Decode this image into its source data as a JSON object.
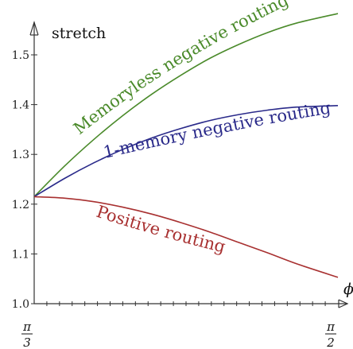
{
  "chart_data": {
    "type": "line",
    "title": "",
    "xlabel": "ϕ",
    "ylabel": "stretch",
    "xlim": [
      1.0472,
      1.5708
    ],
    "ylim": [
      1.0,
      1.55
    ],
    "x_tick_labels": [
      {
        "value": 1.0472,
        "numerator": "π",
        "denominator": "3"
      },
      {
        "value": 1.5708,
        "numerator": "π",
        "denominator": "2"
      }
    ],
    "y_ticks": [
      1.0,
      1.1,
      1.2,
      1.3,
      1.4,
      1.5
    ],
    "y_tick_labels": [
      "1.0",
      "1.1",
      "1.2",
      "1.3",
      "1.4",
      "1.5"
    ],
    "grid": false,
    "series": [
      {
        "name": "Memoryless negative routing",
        "color": "#4a8a2a",
        "x": [
          1.0472,
          1.1,
          1.15,
          1.2,
          1.25,
          1.3,
          1.35,
          1.4,
          1.45,
          1.5,
          1.5708
        ],
        "y": [
          1.215,
          1.277,
          1.33,
          1.378,
          1.421,
          1.459,
          1.493,
          1.521,
          1.545,
          1.564,
          1.583
        ]
      },
      {
        "name": "1-memory negative routing",
        "color": "#2a2a8a",
        "x": [
          1.0472,
          1.1,
          1.15,
          1.2,
          1.25,
          1.3,
          1.35,
          1.4,
          1.45,
          1.5,
          1.5708
        ],
        "y": [
          1.215,
          1.252,
          1.283,
          1.31,
          1.333,
          1.352,
          1.368,
          1.38,
          1.389,
          1.395,
          1.398
        ]
      },
      {
        "name": "Positive routing",
        "color": "#a83030",
        "x": [
          1.0472,
          1.1,
          1.15,
          1.2,
          1.25,
          1.3,
          1.35,
          1.4,
          1.45,
          1.5,
          1.5708
        ],
        "y": [
          1.215,
          1.212,
          1.205,
          1.194,
          1.18,
          1.163,
          1.144,
          1.123,
          1.102,
          1.08,
          1.053
        ]
      }
    ]
  }
}
